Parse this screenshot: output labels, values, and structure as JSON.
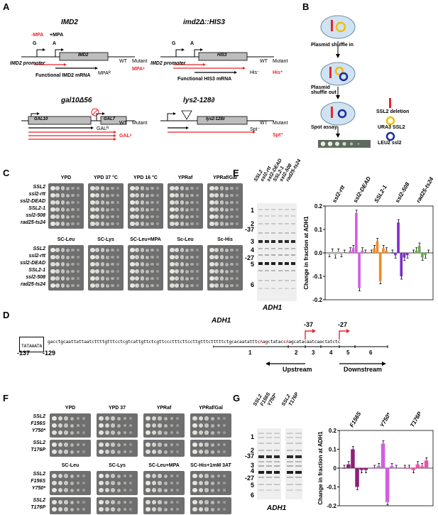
{
  "panels": {
    "A": "A",
    "B": "B",
    "C": "C",
    "D": "D",
    "E": "E",
    "F": "F",
    "G": "G"
  },
  "panelA": {
    "imd2": {
      "title": "IMD2",
      "minus_mpa": "-MPA",
      "plus_mpa": "+MPA",
      "G": "G",
      "A": "A",
      "gene": "IMD2",
      "wt": "WT",
      "mutant": "Mutant",
      "promoter": "IMD2 promoter",
      "mrna": "Functional IMD2 mRNA",
      "mpa_r": "MPAᴿ",
      "mpa_s": "MPAˢ"
    },
    "imd2his3": {
      "title": "imd2Δ::HIS3",
      "G": "G",
      "A": "A",
      "gene": "HIS3",
      "wt": "WT",
      "mutant": "Mutant",
      "promoter": "IMD2 promoter",
      "mrna": "Functional HIS3 mRNA",
      "his_minus": "His⁻",
      "his_plus": "His⁺"
    },
    "gal10": {
      "title": "gal10Δ56",
      "gene1": "GAL10",
      "gene2": "GAL7",
      "wt": "WT",
      "mutant": "Mutant",
      "gal_r": "GALᴿ",
      "gal_s": "GALˢ"
    },
    "lys2": {
      "title": "lys2-128∂",
      "gene": "lys2-128∂",
      "wt": "WT",
      "mutant": "Mutant",
      "spt_minus": "Spt⁻",
      "spt_plus": "Spt⁺"
    }
  },
  "panelB": {
    "step1": "Plasmid shuffle in",
    "step2": "Plasmid shuffle out",
    "step3": "Spot assay",
    "legend": [
      {
        "label": "SSL2 deletion"
      },
      {
        "label": "URA3 SSL2"
      },
      {
        "label": "LEU2 ssl2"
      }
    ]
  },
  "panelC": {
    "strains": [
      "SSL2",
      "ssl2-rtt",
      "ssl2-DEAD",
      "SSL2-1",
      "ssl2-508",
      "rad25-ts24"
    ],
    "row1_conditions": [
      "YPD",
      "YPD 37 °C",
      "YPD 16 °C",
      "YPRaf",
      "YPRaf/Gal"
    ],
    "row2_conditions": [
      "SC-Leu",
      "SC-Lys",
      "SC-Leu+MPA",
      "Sc-Leu",
      "Sc-His"
    ]
  },
  "panelD": {
    "gene": "ADH1",
    "tata": "TATAAATA",
    "seq_rest": "gacctgcaattattaatcttttgtttcctcgtcattgttctcgttccctttcttccttgtttctttttctgcacaatatttc",
    "seq_a1": "A",
    "seq_mid": "agctatacc",
    "seq_a2": "A",
    "seq_end": "agcatacaatcaactatctc",
    "pos1": "-137",
    "pos2": "-129",
    "tss1": "-37",
    "tss2": "-27",
    "windows": [
      "1",
      "2",
      "3",
      "4",
      "5",
      "6"
    ],
    "upstream": "Upstream",
    "downstream": "Downstream"
  },
  "panelE": {
    "lanes": [
      "SSL2",
      "ssl2-rtt",
      "ssl2-DEAD",
      "SSL2-1",
      "ssl2-508",
      "rad25-ts24"
    ],
    "gel_label": "ADH1",
    "windows": [
      "1",
      "2",
      "-37",
      "3",
      "4",
      "-27",
      "5",
      "6"
    ],
    "chart_data": {
      "type": "bar",
      "ylabel": "Change in fraction at ADH1",
      "ylim": [
        -0.2,
        0.2
      ],
      "yticks": [
        "0.2",
        "0.1",
        "0.0",
        "-0.1",
        "-0.2"
      ],
      "groups": [
        "ssl2-rtt",
        "ssl2-DEAD",
        "SSL2-1",
        "ssl2-508",
        "rad25-ts24"
      ],
      "colors": [
        "#b8b8b8",
        "#d25ee0",
        "#f08a24",
        "#7b2bc8",
        "#6aa84f"
      ],
      "windows": [
        "1",
        "2",
        "3",
        "4",
        "5",
        "6"
      ],
      "values": [
        [
          -0.005,
          0.005,
          -0.01,
          0.005,
          -0.005,
          0.0
        ],
        [
          0.01,
          0.02,
          0.17,
          -0.15,
          0.01,
          0.0
        ],
        [
          0.0,
          0.02,
          0.05,
          -0.12,
          0.02,
          0.01
        ],
        [
          0.0,
          -0.01,
          0.13,
          -0.1,
          -0.02,
          -0.01
        ],
        [
          0.0,
          0.01,
          0.03,
          -0.02,
          -0.01,
          0.0
        ]
      ]
    }
  },
  "panelF": {
    "strains_top": [
      "SSL2",
      "F156S",
      "Y750*"
    ],
    "strains_bottom": [
      "SSL2",
      "T176P"
    ],
    "row1_conditions": [
      "YPD",
      "YPD 37",
      "YPRaf",
      "YPRaf/Gal"
    ],
    "row2_conditions": [
      "SC-Leu",
      "SC-Lys",
      "SC-Leu+MPA",
      "SC-His+1mM 3AT"
    ]
  },
  "panelG": {
    "lanes1": [
      "SSL2",
      "F156S",
      "Y750*"
    ],
    "lanes2": [
      "SSL2",
      "T176P"
    ],
    "gel_label": "ADH1",
    "windows": [
      "1",
      "2",
      "-37",
      "3",
      "4",
      "-27",
      "5",
      "6"
    ],
    "chart_data": {
      "type": "bar",
      "ylabel": "Change in fraction at ADH1",
      "ylim": [
        -0.2,
        0.2
      ],
      "yticks": [
        "0.2",
        "0.1",
        "0",
        "-0.1",
        "-0.2"
      ],
      "groups": [
        "F156S",
        "Y750*",
        "T176P"
      ],
      "colors": [
        "#8e1f7a",
        "#d25ee0",
        "#f04fb0"
      ],
      "windows": [
        "1",
        "2",
        "3",
        "4",
        "5",
        "6"
      ],
      "values": [
        [
          0.0,
          0.02,
          0.1,
          -0.1,
          -0.01,
          -0.01
        ],
        [
          0.0,
          0.01,
          0.13,
          -0.18,
          0.01,
          0.0
        ],
        [
          0.0,
          0.0,
          -0.01,
          0.02,
          0.01,
          0.04
        ]
      ]
    }
  }
}
